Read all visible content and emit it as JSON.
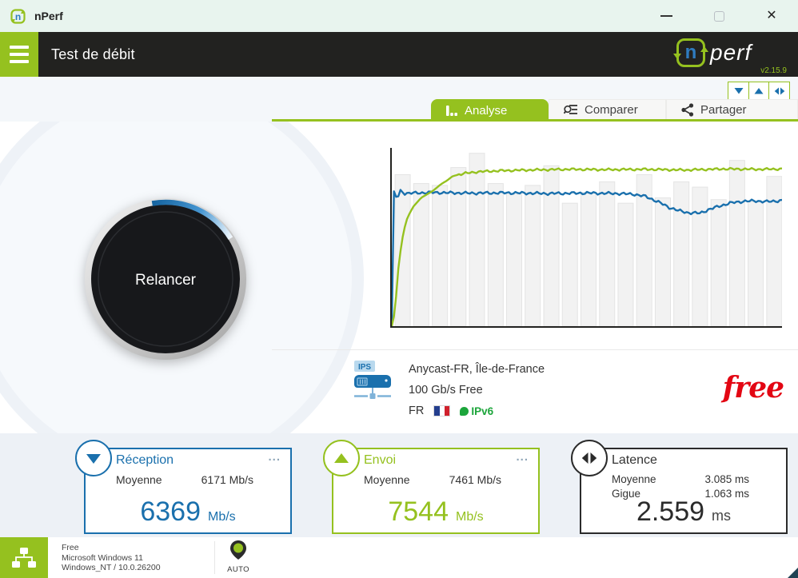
{
  "titlebar": {
    "app_title": "nPerf"
  },
  "header": {
    "page_title": "Test de débit",
    "brand_n": "n",
    "brand_perf": "perf",
    "version": "v2.15.9"
  },
  "curve_toggles": [
    {
      "name": "download-curve-toggle",
      "icon": "triangle-down"
    },
    {
      "name": "upload-curve-toggle",
      "icon": "triangle-up"
    },
    {
      "name": "latency-curve-toggle",
      "icon": "triangle-left-right"
    }
  ],
  "tabs": [
    {
      "label": "Analyse",
      "active": true,
      "icon": "bar-chart-icon"
    },
    {
      "label": "Comparer",
      "active": false,
      "icon": "search-list-icon"
    },
    {
      "label": "Partager",
      "active": false,
      "icon": "share-icon"
    }
  ],
  "gauge": {
    "button_label": "Relancer"
  },
  "server": {
    "badge": "IPS",
    "name": "Anycast-FR, Île-de-France",
    "bandwidth": "100 Gb/s Free",
    "country_code": "FR",
    "flag": "france",
    "ipv6_label": "IPv6",
    "provider_logo": "free"
  },
  "cards": {
    "reception": {
      "title": "Réception",
      "menu": "...",
      "rows": [
        {
          "label": "Moyenne",
          "value": "6171 Mb/s"
        }
      ],
      "big_value": "6369",
      "unit": "Mb/s"
    },
    "envoi": {
      "title": "Envoi",
      "menu": "...",
      "rows": [
        {
          "label": "Moyenne",
          "value": "7461 Mb/s"
        }
      ],
      "big_value": "7544",
      "unit": "Mb/s"
    },
    "latence": {
      "title": "Latence",
      "rows": [
        {
          "label": "Moyenne",
          "value": "3.085 ms"
        },
        {
          "label": "Gigue",
          "value": "1.063 ms"
        }
      ],
      "big_value": "2.559",
      "unit": "ms"
    }
  },
  "statusbar": {
    "isp": "Free",
    "os": "Microsoft Windows 11",
    "platform": "Windows_NT / 10.0.26200",
    "server_mode": "AUTO"
  },
  "colors": {
    "green": "#95c11f",
    "blue": "#1a70ad",
    "dark": "#222220",
    "free_red": "#e30613",
    "ipv6_green": "#1ca53b"
  },
  "chart_data": {
    "type": "line",
    "title": "Courbes de débit instantané (réception / envoi) avec barres d'échantillonnage",
    "xlabel": "",
    "ylabel": "",
    "grid": false,
    "legend": "none",
    "axis_color": "#222220",
    "bar_fill": "#f2f2f2",
    "bar_stroke": "#e4e4e4",
    "bars_normalized": [
      0.85,
      0.8,
      0.79,
      0.89,
      0.97,
      0.8,
      0.74,
      0.79,
      0.9,
      0.69,
      0.75,
      0.81,
      0.69,
      0.85,
      0.72,
      0.81,
      0.78,
      0.71,
      0.93,
      0.7,
      0.84
    ],
    "series": [
      {
        "name": "reception",
        "color": "#1a70ad",
        "ripple": 0.006,
        "ripple_from": 0.03,
        "points": [
          [
            0,
            0
          ],
          [
            0.004,
            0.72
          ],
          [
            0.007,
            0.79
          ],
          [
            0.01,
            0.7
          ],
          [
            0.013,
            0.77
          ],
          [
            0.016,
            0.72
          ],
          [
            0.02,
            0.77
          ],
          [
            0.03,
            0.745
          ],
          [
            0.1,
            0.75
          ],
          [
            0.2,
            0.746
          ],
          [
            0.3,
            0.748
          ],
          [
            0.4,
            0.744
          ],
          [
            0.5,
            0.747
          ],
          [
            0.58,
            0.744
          ],
          [
            0.62,
            0.74
          ],
          [
            0.65,
            0.728
          ],
          [
            0.68,
            0.7
          ],
          [
            0.71,
            0.667
          ],
          [
            0.735,
            0.648
          ],
          [
            0.76,
            0.636
          ],
          [
            0.79,
            0.634
          ],
          [
            0.81,
            0.652
          ],
          [
            0.84,
            0.674
          ],
          [
            0.87,
            0.692
          ],
          [
            0.9,
            0.7
          ],
          [
            0.93,
            0.703
          ],
          [
            0.96,
            0.698
          ],
          [
            1,
            0.705
          ]
        ]
      },
      {
        "name": "envoi",
        "color": "#95c11f",
        "ripple": 0.005,
        "ripple_from": 0.17,
        "points": [
          [
            0,
            0
          ],
          [
            0.008,
            0.08
          ],
          [
            0.018,
            0.36
          ],
          [
            0.03,
            0.53
          ],
          [
            0.04,
            0.61
          ],
          [
            0.055,
            0.67
          ],
          [
            0.075,
            0.72
          ],
          [
            0.106,
            0.76
          ],
          [
            0.125,
            0.795
          ],
          [
            0.14,
            0.815
          ],
          [
            0.155,
            0.84
          ],
          [
            0.17,
            0.85
          ],
          [
            0.19,
            0.858
          ],
          [
            0.22,
            0.866
          ],
          [
            0.28,
            0.872
          ],
          [
            0.35,
            0.876
          ],
          [
            0.45,
            0.88
          ],
          [
            0.55,
            0.878
          ],
          [
            0.65,
            0.88
          ],
          [
            0.75,
            0.876
          ],
          [
            0.85,
            0.882
          ],
          [
            0.95,
            0.88
          ],
          [
            1,
            0.882
          ]
        ]
      }
    ]
  }
}
